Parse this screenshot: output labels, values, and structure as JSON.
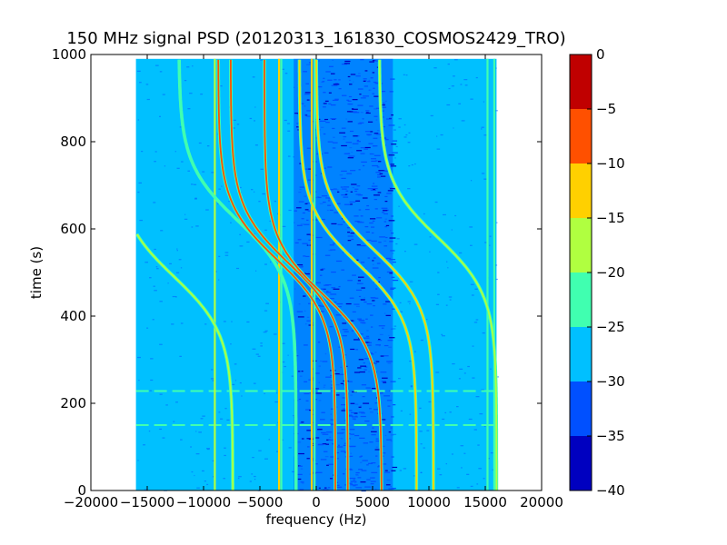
{
  "chart_data": {
    "type": "heatmap",
    "title": "150 MHz signal PSD (20120313_161830_COSMOS2429_TRO)",
    "xlabel": "frequency (Hz)",
    "ylabel": "time (s)",
    "xlim": [
      -20000,
      20000
    ],
    "ylim": [
      0,
      1000
    ],
    "xticks": [
      -20000,
      -15000,
      -10000,
      -5000,
      0,
      5000,
      10000,
      15000,
      20000
    ],
    "xtick_labels": [
      "−20000",
      "−15000",
      "−10000",
      "−5000",
      "0",
      "5000",
      "10000",
      "15000",
      "20000"
    ],
    "yticks": [
      0,
      200,
      400,
      600,
      800,
      1000
    ],
    "ytick_labels": [
      "0",
      "200",
      "400",
      "600",
      "800",
      "1000"
    ],
    "data_extent": {
      "x": [
        -16000,
        16000
      ],
      "y": [
        0,
        990
      ]
    },
    "colorbar": {
      "min": -40,
      "max": 0,
      "levels": [
        -40,
        -35,
        -30,
        -25,
        -20,
        -15,
        -10,
        -5,
        0
      ],
      "tick_labels": [
        "−40",
        "−35",
        "−30",
        "−25",
        "−20",
        "−15",
        "−10",
        "−5",
        "0"
      ],
      "colors": [
        "#0000c0",
        "#0050ff",
        "#00c0ff",
        "#40ffb0",
        "#b0ff40",
        "#ffd000",
        "#ff5000",
        "#c00000"
      ]
    },
    "background_level_db": -27.5,
    "low_noise_band": {
      "x": [
        -2000,
        6800
      ],
      "level_db": -32.5
    },
    "vertical_lines": [
      {
        "x": -9000,
        "level_db": -17.5
      },
      {
        "x": -3300,
        "level_db": -12.5
      },
      {
        "x": -3100,
        "level_db": -22.5
      },
      {
        "x": -400,
        "level_db": -12.5
      },
      {
        "x": -150,
        "level_db": -22.5
      },
      {
        "x": 15200,
        "level_db": -22.5
      },
      {
        "x": 15800,
        "level_db": -22.5
      }
    ],
    "horizontal_lines": [
      {
        "y": 228,
        "level_db": -22.5
      },
      {
        "y": 150,
        "level_db": -22.5
      }
    ],
    "doppler_traces": [
      {
        "x0": -12600,
        "t0": 490,
        "level_db": -17.5
      },
      {
        "x0": -7000,
        "t0": 620,
        "level_db": -22.5
      },
      {
        "x0": -3500,
        "t0": 530,
        "level_db": -7.5
      },
      {
        "x0": -2400,
        "t0": 520,
        "level_db": -7.5
      },
      {
        "x0": 600,
        "t0": 450,
        "level_db": -7.5
      },
      {
        "x0": 3700,
        "t0": 520,
        "level_db": -12.5
      },
      {
        "x0": 5200,
        "t0": 550,
        "level_db": -12.5
      },
      {
        "x0": 10800,
        "t0": 580,
        "level_db": -17.5
      }
    ]
  }
}
